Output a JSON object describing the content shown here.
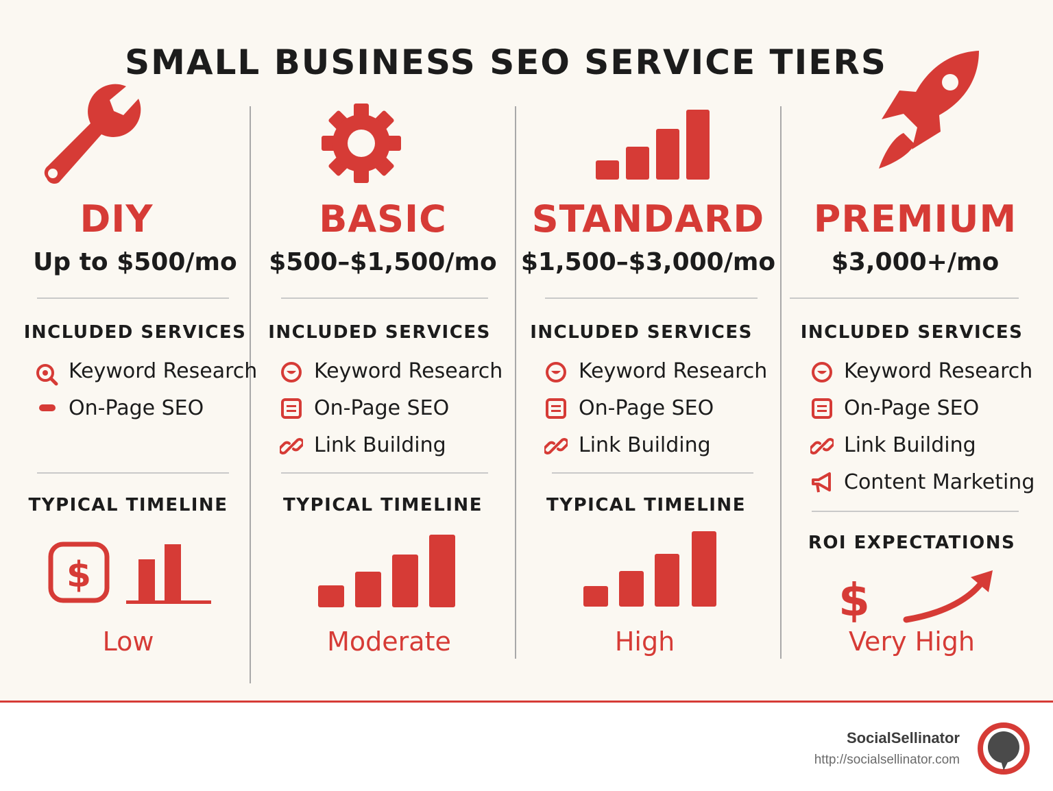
{
  "title": "SMALL BUSINESS SEO SERVICE TIERS",
  "accent_color": "#d63b36",
  "tiers": [
    {
      "name": "DIY",
      "price": "Up to $500/mo",
      "icon": "wrench-icon",
      "section1": "INCLUDED SERVICES",
      "services": [
        "Keyword Research",
        "On-Page SEO"
      ],
      "section2": "TYPICAL TIMELINE",
      "level": "Low"
    },
    {
      "name": "BASIC",
      "price": "$500–$1,500/mo",
      "icon": "gear-icon",
      "section1": "INCLUDED SERVICES",
      "services": [
        "Keyword Research",
        "On-Page SEO",
        "Link Building"
      ],
      "section2": "TYPICAL TIMELINE",
      "level": "Moderate"
    },
    {
      "name": "STANDARD",
      "price": "$1,500–$3,000/mo",
      "icon": "bar-chart-icon",
      "section1": "INCLUDED SERVICES",
      "services": [
        "Keyword Research",
        "On-Page SEO",
        "Link Building"
      ],
      "section2": "TYPICAL TIMELINE",
      "level": "High"
    },
    {
      "name": "PREMIUM",
      "price": "$3,000+/mo",
      "icon": "rocket-icon",
      "section1": "INCLUDED SERVICES",
      "services": [
        "Keyword Research",
        "On-Page SEO",
        "Link Building",
        "Content Marketing"
      ],
      "section2": "ROI EXPECTATIONS",
      "level": "Very High"
    }
  ],
  "footer": {
    "brand": "SocialSellinator",
    "url": "http://socialsellinator.com",
    "logo": "chat-bubble-logo-icon"
  }
}
